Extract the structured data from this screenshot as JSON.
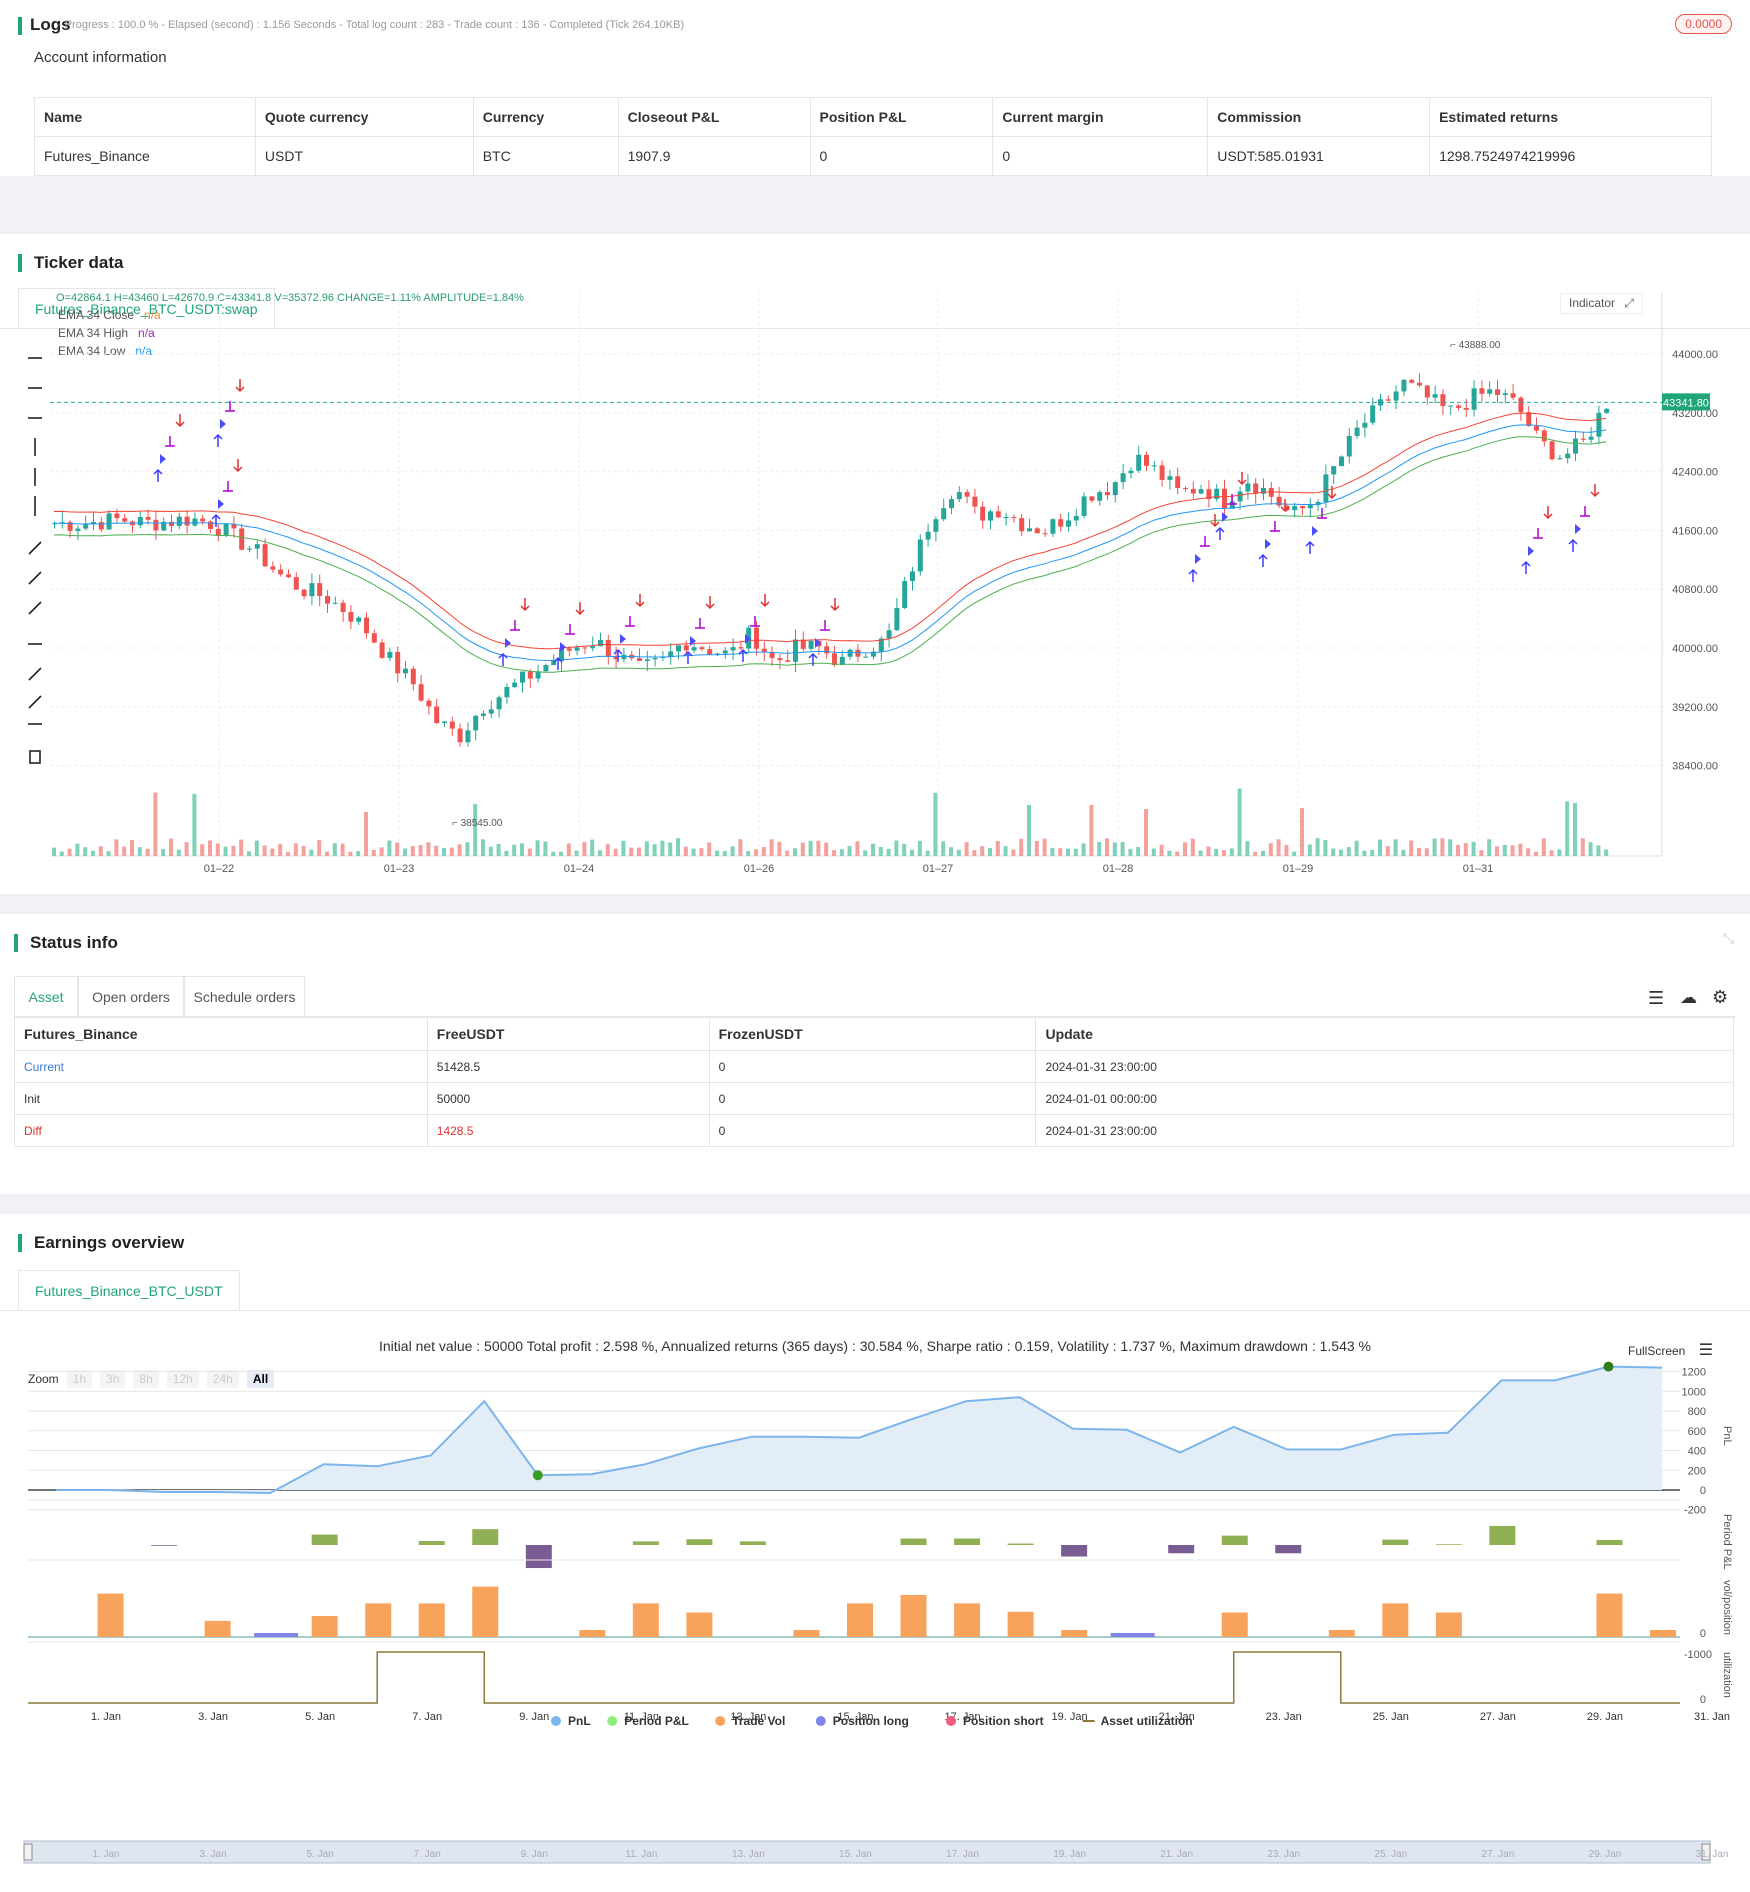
{
  "logs": {
    "title": "Logs",
    "summary": "- Progress : 100.0 % - Elapsed (second) : 1.156  Seconds - Total log count : 283 - Trade count : 136 - Completed (Tick 264.10KB)",
    "badge": "0.0000"
  },
  "account": {
    "heading": "Account information",
    "columns": [
      "Name",
      "Quote currency",
      "Currency",
      "Closeout P&L",
      "Position P&L",
      "Current margin",
      "Commission",
      "Estimated returns"
    ],
    "row": [
      "Futures_Binance",
      "USDT",
      "BTC",
      "1907.9",
      "0",
      "0",
      "USDT:585.01931",
      "1298.7524974219996"
    ]
  },
  "ticker": {
    "title": "Ticker data",
    "tab": "Futures_Binance_BTC_USDT:swap",
    "ohlc": "O=42864.1 H=43460 L=42670.9 C=43341.8 V=35372.96 CHANGE=1.11% AMPLITUDE=1.84%",
    "legend": [
      {
        "name": "EMA 34 Close",
        "value": "n/a",
        "color": "#f08c2a"
      },
      {
        "name": "EMA 34 High",
        "value": "n/a",
        "color": "#9c27b0"
      },
      {
        "name": "EMA 34 Low",
        "value": "n/a",
        "color": "#2196f3"
      }
    ],
    "indicator_btn": "Indicator",
    "price_ticks": [
      "44000.00",
      "43200.00",
      "42400.00",
      "41600.00",
      "40800.00",
      "40000.00",
      "39200.00",
      "38400.00"
    ],
    "last_price": "43341.80",
    "high_label": "43888.00",
    "low_label": "38545.00",
    "date_ticks": [
      "01–22",
      "01–23",
      "01–24",
      "01–26",
      "01–27",
      "01–28",
      "01–29",
      "01–31"
    ]
  },
  "status": {
    "title": "Status info",
    "tabs": [
      "Asset",
      "Open orders",
      "Schedule orders"
    ],
    "columns": [
      "Futures_Binance",
      "FreeUSDT",
      "FrozenUSDT",
      "Update"
    ],
    "rows": [
      {
        "name": "Current",
        "free": "51428.5",
        "frozen": "0",
        "update": "2024-01-31 23:00:00"
      },
      {
        "name": "Init",
        "free": "50000",
        "frozen": "0",
        "update": "2024-01-01 00:00:00"
      },
      {
        "name": "Diff",
        "free": "1428.5",
        "frozen": "0",
        "update": "2024-01-31 23:00:00"
      }
    ]
  },
  "earnings": {
    "title": "Earnings overview",
    "tab": "Futures_Binance_BTC_USDT",
    "summary": "Initial net value : 50000 Total profit : 2.598 %, Annualized returns (365 days) : 30.584 %, Sharpe ratio : 0.159, Volatility : 1.737 %, Maximum drawdown : 1.543 %",
    "fullscreen": "FullScreen",
    "zoom_label": "Zoom",
    "zoom_options": [
      "1h",
      "3h",
      "8h",
      "12h",
      "24h",
      "All"
    ],
    "pnl_ticks": [
      "1200",
      "1000",
      "800",
      "600",
      "400",
      "200",
      "0",
      "-200"
    ],
    "panel_labels": [
      "PnL",
      "Period P&L",
      "vol/position",
      "utilization"
    ],
    "period_tick": "-1000",
    "zero_tick": "0",
    "date_ticks": [
      "1. Jan",
      "3. Jan",
      "5. Jan",
      "7. Jan",
      "9. Jan",
      "11. Jan",
      "13. Jan",
      "15. Jan",
      "17. Jan",
      "19. Jan",
      "21. Jan",
      "23. Jan",
      "25. Jan",
      "27. Jan",
      "29. Jan",
      "31. Jan"
    ],
    "legend": [
      {
        "name": "PnL",
        "color": "#7cb5ec"
      },
      {
        "name": "Period P&L",
        "color": "#90ed7d"
      },
      {
        "name": "Trade Vol",
        "color": "#f7a35c"
      },
      {
        "name": "Position long",
        "color": "#8085e9"
      },
      {
        "name": "Position short",
        "color": "#f15c80"
      },
      {
        "name": "Asset utilization",
        "color": "#8d7a3b"
      }
    ]
  },
  "chart_data": [
    {
      "type": "candlestick",
      "title": "Futures_Binance_BTC_USDT:swap",
      "series_names": [
        "EMA 34 Close",
        "EMA 34 High",
        "EMA 34 Low"
      ],
      "ylim": [
        38000,
        44400
      ],
      "x_labels": [
        "01–22",
        "01–23",
        "01–24",
        "01–26",
        "01–27",
        "01–28",
        "01–29",
        "01–31"
      ],
      "close_path": [
        41700,
        41690,
        41720,
        41750,
        41700,
        41720,
        41760,
        41700,
        41500,
        41300,
        41000,
        40800,
        40700,
        40500,
        40200,
        39800,
        39500,
        39000,
        38800,
        39200,
        39400,
        39600,
        39800,
        40000,
        40100,
        39900,
        39700,
        39800,
        40100,
        40000,
        39900,
        40200,
        39800,
        40000,
        40000,
        39800,
        40000,
        40100,
        41000,
        41800,
        42200,
        41800,
        41900,
        41700,
        41600,
        41800,
        42100,
        42200,
        42600,
        42400,
        42100,
        42200,
        42000,
        42300,
        42100,
        41800,
        42000,
        42500,
        43000,
        43300,
        43600,
        43400,
        43200,
        43400,
        43500,
        43300,
        42800,
        42600,
        42800,
        43340
      ]
    },
    {
      "type": "line",
      "title": "PnL",
      "x": [
        "1. Jan",
        "2. Jan",
        "3. Jan",
        "4. Jan",
        "5. Jan",
        "6. Jan",
        "7. Jan",
        "8. Jan",
        "9. Jan",
        "10. Jan",
        "11. Jan",
        "12. Jan",
        "13. Jan",
        "14. Jan",
        "15. Jan",
        "16. Jan",
        "17. Jan",
        "18. Jan",
        "19. Jan",
        "20. Jan",
        "21. Jan",
        "22. Jan",
        "23. Jan",
        "24. Jan",
        "25. Jan",
        "26. Jan",
        "27. Jan",
        "28. Jan",
        "29. Jan",
        "30. Jan",
        "31. Jan"
      ],
      "values": [
        0,
        0,
        -20,
        -20,
        -30,
        260,
        240,
        350,
        900,
        150,
        160,
        260,
        420,
        540,
        540,
        530,
        720,
        900,
        940,
        620,
        610,
        380,
        640,
        410,
        410,
        560,
        580,
        1110,
        1110,
        1250,
        1240
      ],
      "ylim": [
        -200,
        1200
      ]
    },
    {
      "type": "bar",
      "title": "Period P&L",
      "x": [
        "1. Jan",
        "2. Jan",
        "3. Jan",
        "4. Jan",
        "5. Jan",
        "6. Jan",
        "7. Jan",
        "8. Jan",
        "9. Jan",
        "10. Jan",
        "11. Jan",
        "12. Jan",
        "13. Jan",
        "14. Jan",
        "15. Jan",
        "16. Jan",
        "17. Jan",
        "18. Jan",
        "19. Jan",
        "20. Jan",
        "21. Jan",
        "22. Jan",
        "23. Jan",
        "24. Jan",
        "25. Jan",
        "26. Jan",
        "27. Jan",
        "28. Jan",
        "29. Jan",
        "30. Jan",
        "31. Jan"
      ],
      "values": [
        0,
        0,
        -20,
        0,
        0,
        290,
        0,
        110,
        440,
        -640,
        0,
        100,
        160,
        100,
        0,
        0,
        180,
        180,
        40,
        -320,
        0,
        -230,
        260,
        -230,
        0,
        150,
        20,
        530,
        0,
        140,
        0
      ]
    },
    {
      "type": "bar",
      "title": "Trade Vol",
      "x": [
        "1. Jan",
        "2. Jan",
        "3. Jan",
        "4. Jan",
        "5. Jan",
        "6. Jan",
        "7. Jan",
        "8. Jan",
        "9. Jan",
        "10. Jan",
        "11. Jan",
        "12. Jan",
        "13. Jan",
        "14. Jan",
        "15. Jan",
        "16. Jan",
        "17. Jan",
        "18. Jan",
        "19. Jan",
        "20. Jan",
        "21. Jan",
        "22. Jan",
        "23. Jan",
        "24. Jan",
        "25. Jan",
        "26. Jan",
        "27. Jan",
        "28. Jan",
        "29. Jan",
        "30. Jan",
        "31. Jan"
      ],
      "values": [
        0,
        0.62,
        0,
        0.23,
        0.05,
        0.3,
        0.48,
        0.48,
        0.72,
        0,
        0.1,
        0.48,
        0.35,
        0,
        0.1,
        0.48,
        0.6,
        0.48,
        0.36,
        0.1,
        0.05,
        0,
        0.35,
        0,
        0.1,
        0.48,
        0.35,
        0,
        0,
        0.62,
        0.1
      ]
    },
    {
      "type": "line",
      "title": "Asset utilization",
      "x": [
        "1. Jan",
        "3. Jan",
        "5. Jan",
        "7. Jan",
        "9. Jan",
        "11. Jan",
        "13. Jan",
        "15. Jan",
        "17. Jan",
        "19. Jan",
        "21. Jan",
        "23. Jan",
        "25. Jan",
        "27. Jan",
        "29. Jan",
        "31. Jan"
      ],
      "segments": [
        {
          "from": "5. Jan",
          "to": "6. Jan",
          "level": 1
        },
        {
          "from": "21. Jan",
          "to": "22. Jan",
          "level": 1
        }
      ]
    }
  ]
}
